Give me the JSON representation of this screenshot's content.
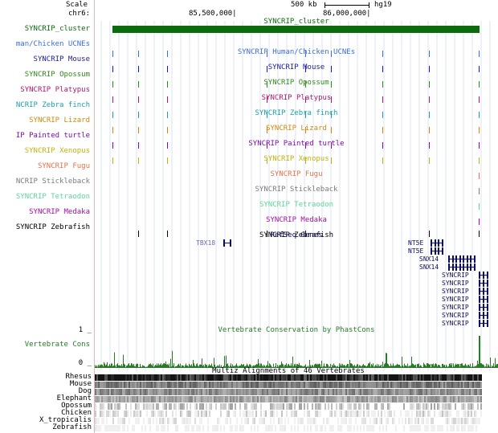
{
  "header": {
    "scale_label": "Scale",
    "chrom_label": "chr6:",
    "scale_bar": "500 kb",
    "assembly": "hg19",
    "pos_left": "85,500,000|",
    "pos_right": "86,000,000|"
  },
  "tracks": [
    {
      "label": "SYNCRIP_cluster",
      "title": "SYNCRIP_cluster",
      "color": "#0c6b0c"
    },
    {
      "label": "man/Chicken UCNEs",
      "title": "SYNCRIP Human/Chicken UCNEs",
      "color": "#3b6fd0"
    },
    {
      "label": "SYNCRIP Mouse",
      "title": "SYNCRIP Mouse",
      "color": "#1a1aa8"
    },
    {
      "label": "SYNCRIP Opossum",
      "title": "SYNCRIP Opossum",
      "color": "#2f8a1d"
    },
    {
      "label": "SYNCRIP Platypus",
      "title": "SYNCRIP Platypus",
      "color": "#b0176f"
    },
    {
      "label": "NCRIP Zebra finch",
      "title": "SYNCRIP Zebra finch",
      "color": "#1a9fa8"
    },
    {
      "label": "SYNCRIP Lizard",
      "title": "SYNCRIP Lizard",
      "color": "#d0880c"
    },
    {
      "label": "IP Painted turtle",
      "title": "SYNCRIP Painted turtle",
      "color": "#7a0ca8"
    },
    {
      "label": "SYNCRIP Xenopus",
      "title": "SYNCRIP Xenopus",
      "color": "#c2b20c"
    },
    {
      "label": "SYNCRIP Fugu",
      "title": "SYNCRIP Fugu",
      "color": "#e0734a"
    },
    {
      "label": "NCRIP Stickleback",
      "title": "SYNCRIP Stickleback",
      "color": "#7b7b7b"
    },
    {
      "label": "SYNCRIP Tetraodon",
      "title": "SYNCRIP Tetraodon",
      "color": "#5ed49a"
    },
    {
      "label": "SYNCRIP Medaka",
      "title": "SYNCRIP Medaka",
      "color": "#a80ca8"
    },
    {
      "label": "SYNCRIP Zebrafish",
      "title": "SYNCRIP Zebrafish",
      "color": "#000000"
    }
  ],
  "refseq": {
    "title": "RefSeq Genes",
    "genes": [
      "TBX18",
      "NT5E",
      "NT5E",
      "SNX14",
      "SNX14",
      "SYNCRIP",
      "SYNCRIP",
      "SYNCRIP",
      "SYNCRIP",
      "SYNCRIP",
      "SYNCRIP",
      "SYNCRIP"
    ]
  },
  "conservation": {
    "title": "Vertebrate Conservation by PhastCons",
    "label": "Vertebrate Cons",
    "max_label": "1 _",
    "min_label": "0 _",
    "color": "#2a7a2a"
  },
  "multiz": {
    "title": "Multiz Alignments of 46 Vertebrates",
    "species": [
      "Rhesus",
      "Mouse",
      "Dog",
      "Elephant",
      "Opossum",
      "Chicken",
      "X_tropicalis",
      "Zebrafish"
    ]
  }
}
